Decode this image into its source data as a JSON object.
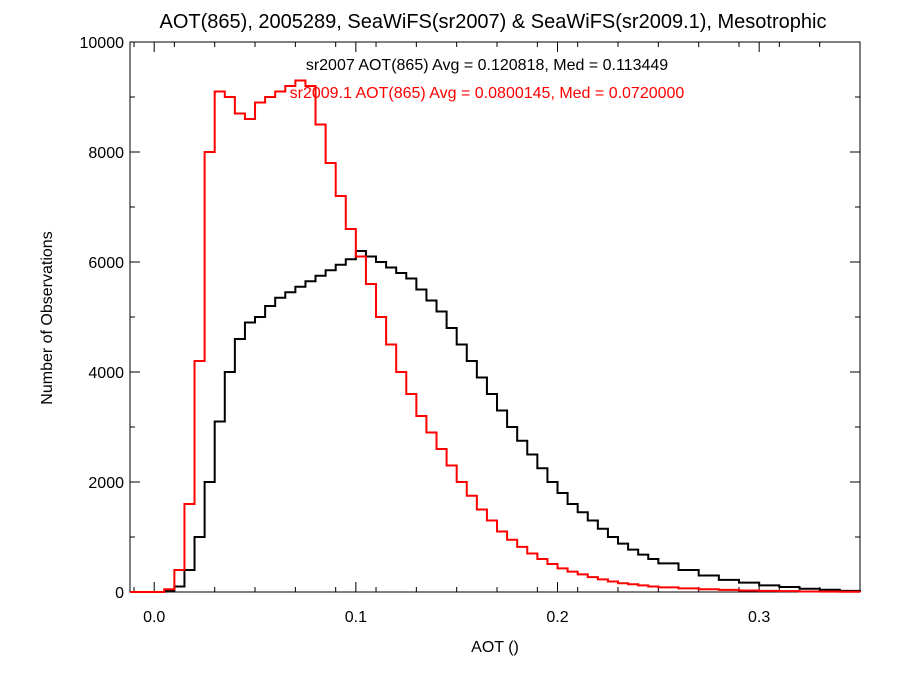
{
  "chart_data": {
    "type": "line",
    "title": "AOT(865), 2005289, SeaWiFS(sr2007) & SeaWiFS(sr2009.1), Mesotrophic",
    "xlabel": "AOT ()",
    "ylabel": "Number of Observations",
    "xlim": [
      -0.012,
      0.35
    ],
    "ylim": [
      0,
      10000
    ],
    "xticks": [
      "0.0",
      "0.1",
      "0.2",
      "0.3"
    ],
    "xtick_values": [
      0.0,
      0.1,
      0.2,
      0.3
    ],
    "yticks": [
      "0",
      "2000",
      "4000",
      "6000",
      "8000",
      "10000"
    ],
    "ytick_values": [
      0,
      2000,
      4000,
      6000,
      8000,
      10000
    ],
    "grid": false,
    "annotations": [
      {
        "text": "sr2007 AOT(865) Avg = 0.120818, Med = 0.113449",
        "color": "#000000"
      },
      {
        "text": "sr2009.1 AOT(865) Avg = 0.0800145, Med = 0.0720000",
        "color": "#ff0000"
      }
    ],
    "series": [
      {
        "color": "#000000",
        "x": [
          -0.012,
          0.0,
          0.005,
          0.01,
          0.015,
          0.02,
          0.025,
          0.03,
          0.035,
          0.04,
          0.045,
          0.05,
          0.055,
          0.06,
          0.065,
          0.07,
          0.075,
          0.08,
          0.085,
          0.09,
          0.095,
          0.1,
          0.105,
          0.11,
          0.115,
          0.12,
          0.125,
          0.13,
          0.135,
          0.14,
          0.145,
          0.15,
          0.155,
          0.16,
          0.165,
          0.17,
          0.175,
          0.18,
          0.185,
          0.19,
          0.195,
          0.2,
          0.205,
          0.21,
          0.215,
          0.22,
          0.225,
          0.23,
          0.235,
          0.24,
          0.245,
          0.25,
          0.26,
          0.27,
          0.28,
          0.29,
          0.3,
          0.31,
          0.32,
          0.33,
          0.34,
          0.35
        ],
        "y": [
          0,
          0,
          20,
          100,
          400,
          1000,
          2000,
          3100,
          4000,
          4600,
          4900,
          5000,
          5200,
          5350,
          5450,
          5550,
          5650,
          5750,
          5850,
          5950,
          6050,
          6200,
          6100,
          6000,
          5900,
          5800,
          5700,
          5500,
          5300,
          5100,
          4800,
          4500,
          4200,
          3900,
          3600,
          3300,
          3000,
          2750,
          2500,
          2250,
          2000,
          1800,
          1600,
          1450,
          1300,
          1150,
          1000,
          880,
          770,
          680,
          600,
          520,
          400,
          300,
          220,
          170,
          120,
          90,
          60,
          40,
          20,
          10
        ]
      },
      {
        "color": "#ff0000",
        "x": [
          -0.012,
          0.0,
          0.005,
          0.01,
          0.015,
          0.02,
          0.025,
          0.03,
          0.035,
          0.04,
          0.045,
          0.05,
          0.055,
          0.06,
          0.065,
          0.07,
          0.075,
          0.08,
          0.085,
          0.09,
          0.095,
          0.1,
          0.105,
          0.11,
          0.115,
          0.12,
          0.125,
          0.13,
          0.135,
          0.14,
          0.145,
          0.15,
          0.155,
          0.16,
          0.165,
          0.17,
          0.175,
          0.18,
          0.185,
          0.19,
          0.195,
          0.2,
          0.205,
          0.21,
          0.215,
          0.22,
          0.225,
          0.23,
          0.235,
          0.24,
          0.245,
          0.25,
          0.26,
          0.27,
          0.28,
          0.29,
          0.3,
          0.31,
          0.32,
          0.33,
          0.34,
          0.35
        ],
        "y": [
          0,
          0,
          50,
          400,
          1600,
          4200,
          8000,
          9100,
          9000,
          8700,
          8600,
          8900,
          9000,
          9100,
          9200,
          9300,
          9200,
          8500,
          7800,
          7200,
          6600,
          6100,
          5600,
          5000,
          4500,
          4000,
          3600,
          3200,
          2900,
          2600,
          2300,
          2000,
          1750,
          1500,
          1300,
          1100,
          950,
          820,
          700,
          600,
          510,
          430,
          370,
          320,
          270,
          230,
          190,
          160,
          140,
          120,
          100,
          85,
          65,
          50,
          38,
          28,
          20,
          15,
          10,
          7,
          5,
          3
        ]
      }
    ]
  }
}
